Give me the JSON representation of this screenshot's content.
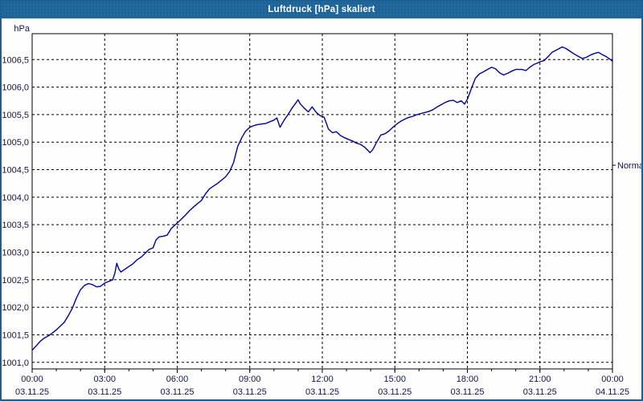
{
  "window": {
    "title": "Luftdruck [hPa] skaliert"
  },
  "colors": {
    "titlebar_bg": "#21689e",
    "panel_border": "#1d5f93",
    "plot_border": "#000000",
    "grid": "#000000",
    "line": "#0000a0",
    "tick_text": "#14144b",
    "title_text": "#ffffff",
    "plot_bg": "#fdfefd"
  },
  "chart_data": {
    "type": "line",
    "title": "Luftdruck [hPa] skaliert",
    "xlabel": "",
    "ylabel": "hPa",
    "grid": "dashed",
    "legend_position": "none",
    "xlim": [
      0,
      24
    ],
    "ylim": [
      1000.88,
      1006.97
    ],
    "y_ticks": [
      {
        "label": "1001,0",
        "value": 1001.0
      },
      {
        "label": "1001,5",
        "value": 1001.5
      },
      {
        "label": "1002,0",
        "value": 1002.0
      },
      {
        "label": "1002,5",
        "value": 1002.5
      },
      {
        "label": "1003,0",
        "value": 1003.0
      },
      {
        "label": "1003,5",
        "value": 1003.5
      },
      {
        "label": "1004,0",
        "value": 1004.0
      },
      {
        "label": "1004,5",
        "value": 1004.5
      },
      {
        "label": "1005,0",
        "value": 1005.0
      },
      {
        "label": "1005,5",
        "value": 1005.5
      },
      {
        "label": "1006,0",
        "value": 1006.0
      },
      {
        "label": "1006,5",
        "value": 1006.5
      }
    ],
    "x_ticks": [
      {
        "time": "00:00",
        "date": "03.11.25",
        "hour": 0
      },
      {
        "time": "03:00",
        "date": "03.11.25",
        "hour": 3
      },
      {
        "time": "06:00",
        "date": "03.11.25",
        "hour": 6
      },
      {
        "time": "09:00",
        "date": "03.11.25",
        "hour": 9
      },
      {
        "time": "12:00",
        "date": "03.11.25",
        "hour": 12
      },
      {
        "time": "15:00",
        "date": "03.11.25",
        "hour": 15
      },
      {
        "time": "18:00",
        "date": "03.11.25",
        "hour": 18
      },
      {
        "time": "21:00",
        "date": "03.11.25",
        "hour": 21
      },
      {
        "time": "00:00",
        "date": "04.11.25",
        "hour": 24
      }
    ],
    "minor_tick_every_hours": 1,
    "annotations": [
      {
        "label": "Normal",
        "value": 1004.58,
        "side": "right"
      }
    ],
    "series": [
      {
        "name": "Luftdruck",
        "color": "#0000a0",
        "points": [
          [
            0,
            1001.22
          ],
          [
            0.17,
            1001.3
          ],
          [
            0.33,
            1001.38
          ],
          [
            0.5,
            1001.44
          ],
          [
            0.67,
            1001.48
          ],
          [
            0.83,
            1001.53
          ],
          [
            1,
            1001.59
          ],
          [
            1.17,
            1001.66
          ],
          [
            1.33,
            1001.73
          ],
          [
            1.5,
            1001.85
          ],
          [
            1.67,
            1001.99
          ],
          [
            1.83,
            1002.17
          ],
          [
            2,
            1002.32
          ],
          [
            2.17,
            1002.4
          ],
          [
            2.33,
            1002.43
          ],
          [
            2.5,
            1002.41
          ],
          [
            2.67,
            1002.37
          ],
          [
            2.83,
            1002.38
          ],
          [
            3,
            1002.44
          ],
          [
            3.17,
            1002.47
          ],
          [
            3.33,
            1002.5
          ],
          [
            3.42,
            1002.62
          ],
          [
            3.5,
            1002.8
          ],
          [
            3.58,
            1002.7
          ],
          [
            3.67,
            1002.64
          ],
          [
            3.83,
            1002.69
          ],
          [
            4,
            1002.74
          ],
          [
            4.17,
            1002.79
          ],
          [
            4.33,
            1002.86
          ],
          [
            4.5,
            1002.91
          ],
          [
            4.67,
            1002.98
          ],
          [
            4.83,
            1003.05
          ],
          [
            5,
            1003.08
          ],
          [
            5.12,
            1003.22
          ],
          [
            5.25,
            1003.28
          ],
          [
            5.42,
            1003.29
          ],
          [
            5.58,
            1003.31
          ],
          [
            5.75,
            1003.43
          ],
          [
            5.92,
            1003.5
          ],
          [
            6,
            1003.53
          ],
          [
            6.17,
            1003.6
          ],
          [
            6.33,
            1003.67
          ],
          [
            6.5,
            1003.75
          ],
          [
            6.67,
            1003.82
          ],
          [
            6.83,
            1003.88
          ],
          [
            7,
            1003.94
          ],
          [
            7.17,
            1004.06
          ],
          [
            7.33,
            1004.15
          ],
          [
            7.5,
            1004.2
          ],
          [
            7.67,
            1004.25
          ],
          [
            7.83,
            1004.31
          ],
          [
            8,
            1004.37
          ],
          [
            8.17,
            1004.47
          ],
          [
            8.33,
            1004.63
          ],
          [
            8.5,
            1004.92
          ],
          [
            8.67,
            1005.08
          ],
          [
            8.83,
            1005.2
          ],
          [
            9,
            1005.27
          ],
          [
            9.17,
            1005.3
          ],
          [
            9.33,
            1005.32
          ],
          [
            9.5,
            1005.33
          ],
          [
            9.67,
            1005.34
          ],
          [
            9.83,
            1005.37
          ],
          [
            10,
            1005.4
          ],
          [
            10.12,
            1005.44
          ],
          [
            10.25,
            1005.27
          ],
          [
            10.42,
            1005.4
          ],
          [
            10.58,
            1005.5
          ],
          [
            10.75,
            1005.62
          ],
          [
            10.92,
            1005.72
          ],
          [
            11,
            1005.77
          ],
          [
            11.08,
            1005.7
          ],
          [
            11.25,
            1005.62
          ],
          [
            11.42,
            1005.55
          ],
          [
            11.58,
            1005.64
          ],
          [
            11.75,
            1005.54
          ],
          [
            11.92,
            1005.48
          ],
          [
            12.08,
            1005.45
          ],
          [
            12.25,
            1005.24
          ],
          [
            12.42,
            1005.17
          ],
          [
            12.58,
            1005.19
          ],
          [
            12.75,
            1005.12
          ],
          [
            12.92,
            1005.08
          ],
          [
            13.08,
            1005.05
          ],
          [
            13.25,
            1005.02
          ],
          [
            13.42,
            1004.98
          ],
          [
            13.58,
            1004.96
          ],
          [
            13.75,
            1004.91
          ],
          [
            13.97,
            1004.81
          ],
          [
            14.08,
            1004.86
          ],
          [
            14.25,
            1005.0
          ],
          [
            14.42,
            1005.13
          ],
          [
            14.58,
            1005.15
          ],
          [
            14.75,
            1005.2
          ],
          [
            14.92,
            1005.27
          ],
          [
            15.08,
            1005.33
          ],
          [
            15.25,
            1005.38
          ],
          [
            15.42,
            1005.42
          ],
          [
            15.58,
            1005.45
          ],
          [
            15.75,
            1005.47
          ],
          [
            15.92,
            1005.5
          ],
          [
            16.08,
            1005.52
          ],
          [
            16.25,
            1005.54
          ],
          [
            16.42,
            1005.56
          ],
          [
            16.58,
            1005.59
          ],
          [
            16.75,
            1005.64
          ],
          [
            16.92,
            1005.68
          ],
          [
            17.08,
            1005.72
          ],
          [
            17.25,
            1005.75
          ],
          [
            17.42,
            1005.76
          ],
          [
            17.58,
            1005.72
          ],
          [
            17.75,
            1005.75
          ],
          [
            17.88,
            1005.69
          ],
          [
            18,
            1005.78
          ],
          [
            18.17,
            1005.98
          ],
          [
            18.33,
            1006.16
          ],
          [
            18.5,
            1006.24
          ],
          [
            18.67,
            1006.28
          ],
          [
            18.83,
            1006.32
          ],
          [
            19,
            1006.36
          ],
          [
            19.17,
            1006.33
          ],
          [
            19.33,
            1006.26
          ],
          [
            19.5,
            1006.22
          ],
          [
            19.67,
            1006.25
          ],
          [
            19.83,
            1006.29
          ],
          [
            20,
            1006.32
          ],
          [
            20.25,
            1006.32
          ],
          [
            20.42,
            1006.3
          ],
          [
            20.58,
            1006.36
          ],
          [
            20.75,
            1006.41
          ],
          [
            20.92,
            1006.44
          ],
          [
            21,
            1006.46
          ],
          [
            21.17,
            1006.48
          ],
          [
            21.33,
            1006.55
          ],
          [
            21.5,
            1006.63
          ],
          [
            21.67,
            1006.67
          ],
          [
            21.92,
            1006.73
          ],
          [
            22.08,
            1006.7
          ],
          [
            22.25,
            1006.65
          ],
          [
            22.42,
            1006.6
          ],
          [
            22.58,
            1006.56
          ],
          [
            22.75,
            1006.52
          ],
          [
            22.92,
            1006.54
          ],
          [
            23.08,
            1006.58
          ],
          [
            23.25,
            1006.61
          ],
          [
            23.42,
            1006.63
          ],
          [
            23.58,
            1006.59
          ],
          [
            23.75,
            1006.55
          ],
          [
            23.92,
            1006.5
          ],
          [
            24,
            1006.47
          ]
        ]
      }
    ]
  }
}
